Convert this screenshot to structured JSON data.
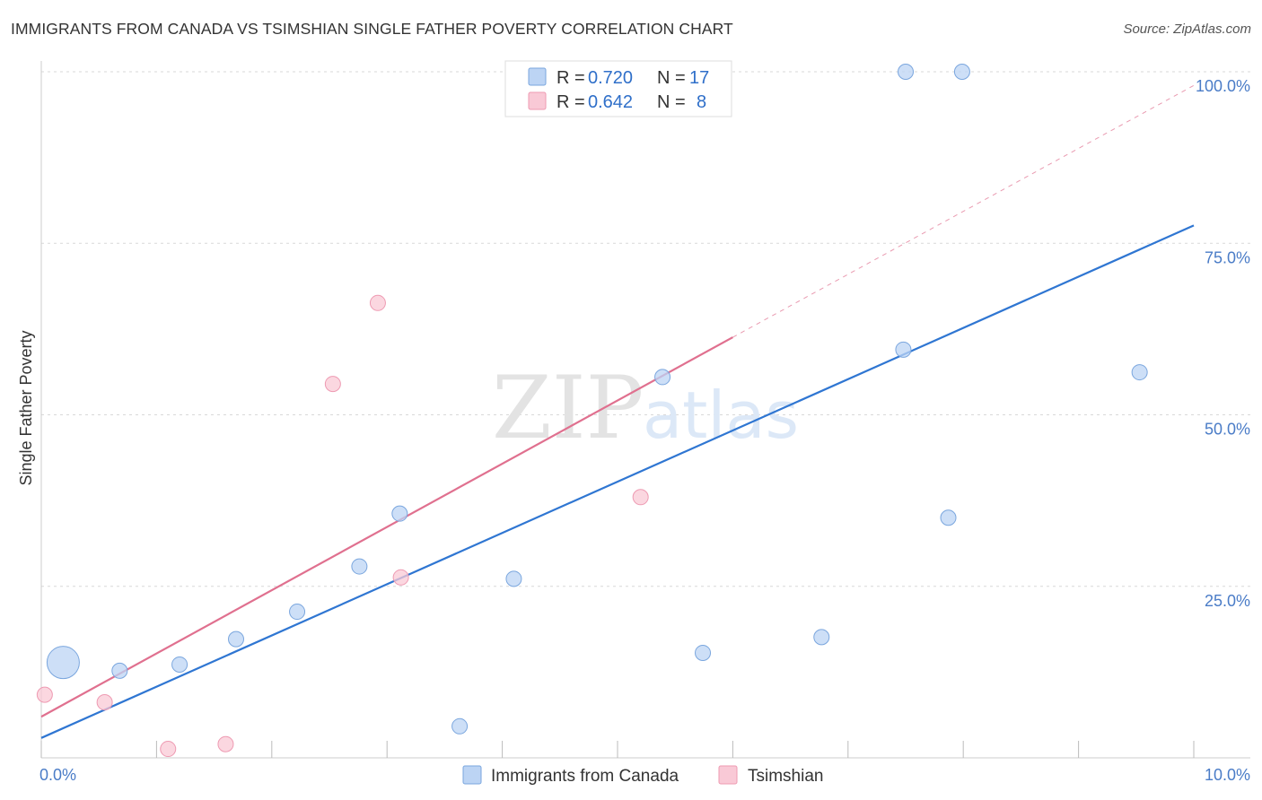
{
  "header": {
    "title": "IMMIGRANTS FROM CANADA VS TSIMSHIAN SINGLE FATHER POVERTY CORRELATION CHART",
    "source": "Source: ZipAtlas.com"
  },
  "colors": {
    "blue_fill": "#bcd4f4",
    "blue_stroke": "#7aa6de",
    "blue_line": "#2f76d2",
    "pink_fill": "#f9c9d6",
    "pink_stroke": "#ee9ab2",
    "pink_line": "#e0708f",
    "grid": "#d9d9d9",
    "tick_text": "#4a7cc7"
  },
  "chart_data": {
    "type": "scatter",
    "title": "IMMIGRANTS FROM CANADA VS TSIMSHIAN SINGLE FATHER POVERTY CORRELATION CHART",
    "xlabel": "",
    "ylabel": "Single Father Poverty",
    "xlim": [
      0,
      10
    ],
    "ylim": [
      0,
      100
    ],
    "x_tick_labels": [
      "0.0%",
      "10.0%"
    ],
    "y_tick_labels": [
      "25.0%",
      "50.0%",
      "75.0%",
      "100.0%"
    ],
    "y_tick_values": [
      25,
      50,
      75,
      100
    ],
    "grid": true,
    "watermark": {
      "part1": "ZIP",
      "part2": "atlas"
    },
    "legend": {
      "position": "top-center",
      "rows": [
        {
          "r_label": "R =",
          "r_value": "0.720",
          "n_label": "N =",
          "n_value": "17"
        },
        {
          "r_label": "R =",
          "r_value": "0.642",
          "n_label": "N =",
          "n_value": "8"
        }
      ]
    },
    "series": [
      {
        "name": "Immigrants from Canada",
        "color": "blue",
        "points": [
          {
            "x": 0.19,
            "y": 13.9,
            "size": "large"
          },
          {
            "x": 0.68,
            "y": 12.7
          },
          {
            "x": 1.2,
            "y": 13.6
          },
          {
            "x": 1.69,
            "y": 17.3
          },
          {
            "x": 2.22,
            "y": 21.3
          },
          {
            "x": 2.76,
            "y": 27.9
          },
          {
            "x": 3.11,
            "y": 35.6
          },
          {
            "x": 3.63,
            "y": 4.6
          },
          {
            "x": 4.1,
            "y": 26.1
          },
          {
            "x": 5.39,
            "y": 55.5
          },
          {
            "x": 5.74,
            "y": 15.3
          },
          {
            "x": 6.77,
            "y": 17.6
          },
          {
            "x": 7.48,
            "y": 59.5
          },
          {
            "x": 7.87,
            "y": 35.0
          },
          {
            "x": 7.5,
            "y": 100.0
          },
          {
            "x": 7.99,
            "y": 100.0
          },
          {
            "x": 9.53,
            "y": 56.2
          }
        ],
        "trend": {
          "x": [
            0,
            10
          ],
          "y": [
            2.9,
            77.6
          ],
          "style": "solid"
        }
      },
      {
        "name": "Tsimshian",
        "color": "pink",
        "points": [
          {
            "x": 0.03,
            "y": 9.2
          },
          {
            "x": 0.55,
            "y": 8.1
          },
          {
            "x": 1.1,
            "y": 1.3
          },
          {
            "x": 1.6,
            "y": 2.0
          },
          {
            "x": 2.53,
            "y": 54.5
          },
          {
            "x": 2.92,
            "y": 66.3
          },
          {
            "x": 3.12,
            "y": 26.3
          },
          {
            "x": 5.2,
            "y": 38.0
          }
        ],
        "trend": {
          "x": [
            0,
            6.0
          ],
          "y": [
            6.0,
            61.3
          ],
          "style": "solid",
          "extension": {
            "x": [
              6.0,
              10
            ],
            "y": [
              61.3,
              98.0
            ],
            "style": "dashed"
          }
        }
      }
    ]
  }
}
